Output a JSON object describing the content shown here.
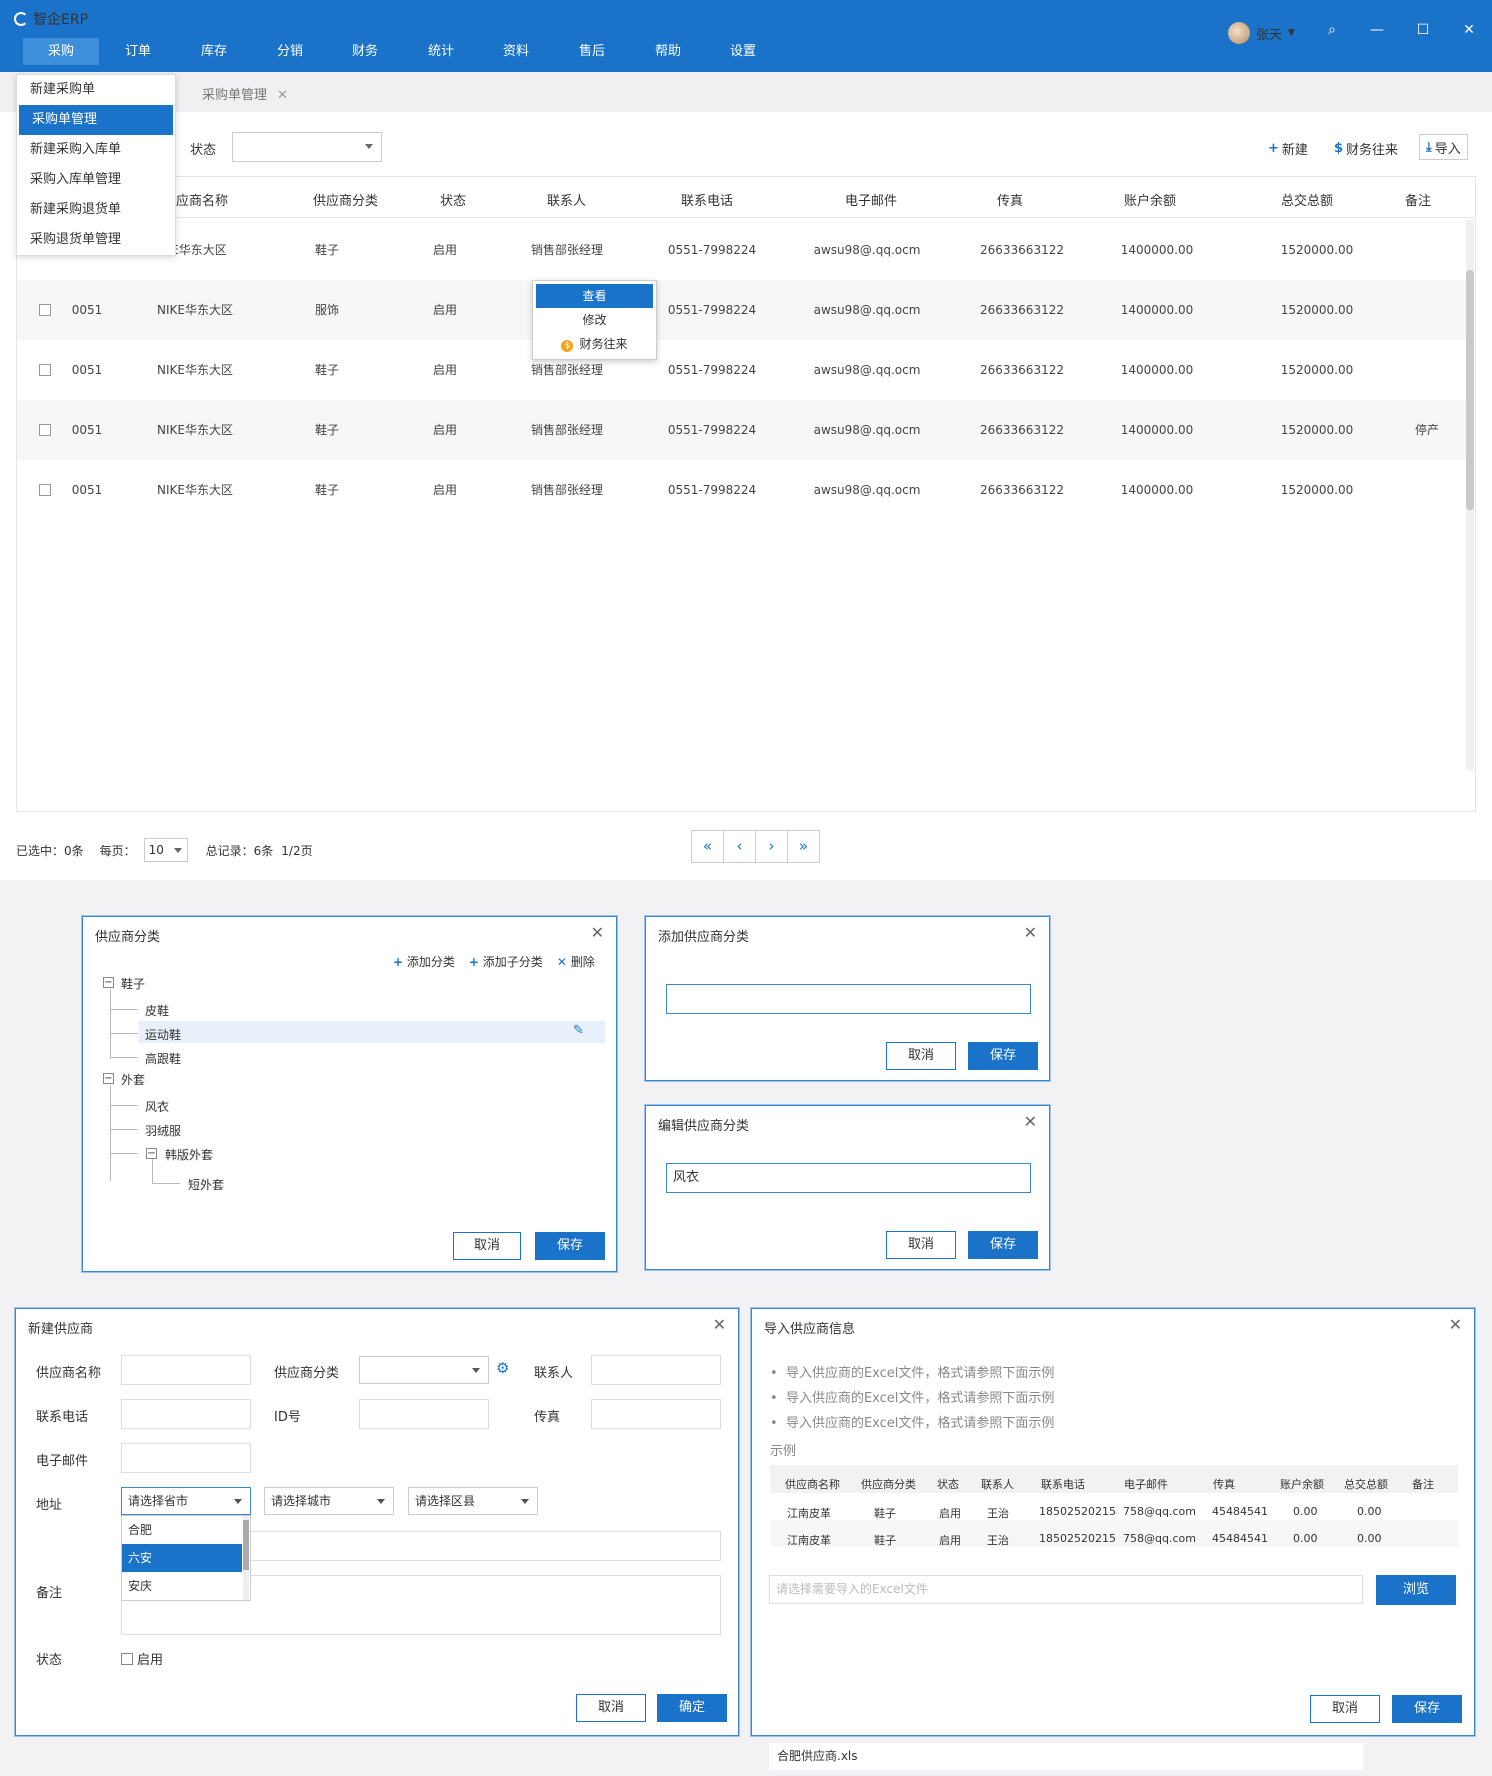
{
  "app": {
    "title": "智企ERP"
  },
  "nav": [
    "采购",
    "订单",
    "库存",
    "分销",
    "财务",
    "统计",
    "资料",
    "售后",
    "帮助",
    "设置"
  ],
  "user": {
    "name": "张天"
  },
  "tab": {
    "label": "采购单管理"
  },
  "purchase_menu": [
    "新建采购单",
    "采购单管理",
    "新建采购入库单",
    "采购入库单管理",
    "新建采购退货单",
    "采购退货单管理"
  ],
  "filter": {
    "status_label": "状态"
  },
  "toolbar": {
    "new": "新建",
    "finance": "财务往来",
    "import": "导入"
  },
  "table": {
    "headers": [
      "应商名称",
      "供应商分类",
      "状态",
      "联系人",
      "联系电话",
      "电子邮件",
      "传真",
      "账户余额",
      "总交总额",
      "备注"
    ],
    "rows": [
      {
        "id": "",
        "name": "KE华东大区",
        "cat": "鞋子",
        "status": "启用",
        "contact": "销售部张经理",
        "phone": "0551-7998224",
        "email": "awsu98@.qq.ocm",
        "fax": "26633663122",
        "balance": "1400000.00",
        "total": "1520000.00",
        "note": ""
      },
      {
        "id": "0051",
        "name": "NIKE华东大区",
        "cat": "服饰",
        "status": "启用",
        "contact": "",
        "phone": "0551-7998224",
        "email": "awsu98@.qq.ocm",
        "fax": "26633663122",
        "balance": "1400000.00",
        "total": "1520000.00",
        "note": ""
      },
      {
        "id": "0051",
        "name": "NIKE华东大区",
        "cat": "鞋子",
        "status": "启用",
        "contact": "销售部张经理",
        "phone": "0551-7998224",
        "email": "awsu98@.qq.ocm",
        "fax": "26633663122",
        "balance": "1400000.00",
        "total": "1520000.00",
        "note": ""
      },
      {
        "id": "0051",
        "name": "NIKE华东大区",
        "cat": "鞋子",
        "status": "启用",
        "contact": "销售部张经理",
        "phone": "0551-7998224",
        "email": "awsu98@.qq.ocm",
        "fax": "26633663122",
        "balance": "1400000.00",
        "total": "1520000.00",
        "note": "停产"
      },
      {
        "id": "0051",
        "name": "NIKE华东大区",
        "cat": "鞋子",
        "status": "启用",
        "contact": "销售部张经理",
        "phone": "0551-7998224",
        "email": "awsu98@.qq.ocm",
        "fax": "26633663122",
        "balance": "1400000.00",
        "total": "1520000.00",
        "note": ""
      }
    ]
  },
  "context_menu": [
    "查看",
    "修改",
    "财务往来"
  ],
  "footer": {
    "selected": "已选中：0条",
    "per_page_label": "每页：",
    "per_page": "10",
    "total": "总记录：6条",
    "page": "1/2页"
  },
  "pager": [
    "«",
    "‹",
    "›",
    "»"
  ],
  "dlg_category": {
    "title": "供应商分类",
    "add": "添加分类",
    "add_child": "添加子分类",
    "delete": "删除",
    "tree": {
      "shoes": "鞋子",
      "leather": "皮鞋",
      "sport": "运动鞋",
      "heels": "高跟鞋",
      "coat": "外套",
      "wind": "风衣",
      "down": "羽绒服",
      "korean": "韩版外套",
      "short": "短外套"
    },
    "cancel": "取消",
    "save": "保存"
  },
  "dlg_add": {
    "title": "添加供应商分类",
    "value": "",
    "cancel": "取消",
    "save": "保存"
  },
  "dlg_edit": {
    "title": "编辑供应商分类",
    "value": "风衣",
    "cancel": "取消",
    "save": "保存"
  },
  "dlg_new": {
    "title": "新建供应商",
    "labels": {
      "name": "供应商名称",
      "cat": "供应商分类",
      "contact": "联系人",
      "phone": "联系电话",
      "idno": "ID号",
      "fax": "传真",
      "email": "电子邮件",
      "addr": "地址",
      "note": "备注",
      "status": "状态"
    },
    "province": "请选择省市",
    "city": "请选择城市",
    "district": "请选择区县",
    "province_options": [
      "合肥",
      "六安",
      "安庆"
    ],
    "enable": "启用",
    "cancel": "取消",
    "ok": "确定"
  },
  "dlg_import": {
    "title": "导入供应商信息",
    "tips": [
      "导入供应商的Excel文件，格式请参照下面示例",
      "导入供应商的Excel文件，格式请参照下面示例",
      "导入供应商的Excel文件，格式请参照下面示例"
    ],
    "example": "示例",
    "headers": [
      "供应商名称",
      "供应商分类",
      "状态",
      "联系人",
      "联系电话",
      "电子邮件",
      "传真",
      "账户余额",
      "总交总额",
      "备注"
    ],
    "rows": [
      [
        "江南皮革",
        "鞋子",
        "启用",
        "王治",
        "18502520215",
        "758@qq.com",
        "45484541",
        "0.00",
        "0.00",
        ""
      ],
      [
        "江南皮革",
        "鞋子",
        "启用",
        "王治",
        "18502520215",
        "758@qq.com",
        "45484541",
        "0.00",
        "0.00",
        ""
      ]
    ],
    "file_placeholder": "请选择需要导入的Excel文件",
    "browse": "浏览",
    "cancel": "取消",
    "save": "保存",
    "file_suggestion": "合肥供应商.xls"
  }
}
